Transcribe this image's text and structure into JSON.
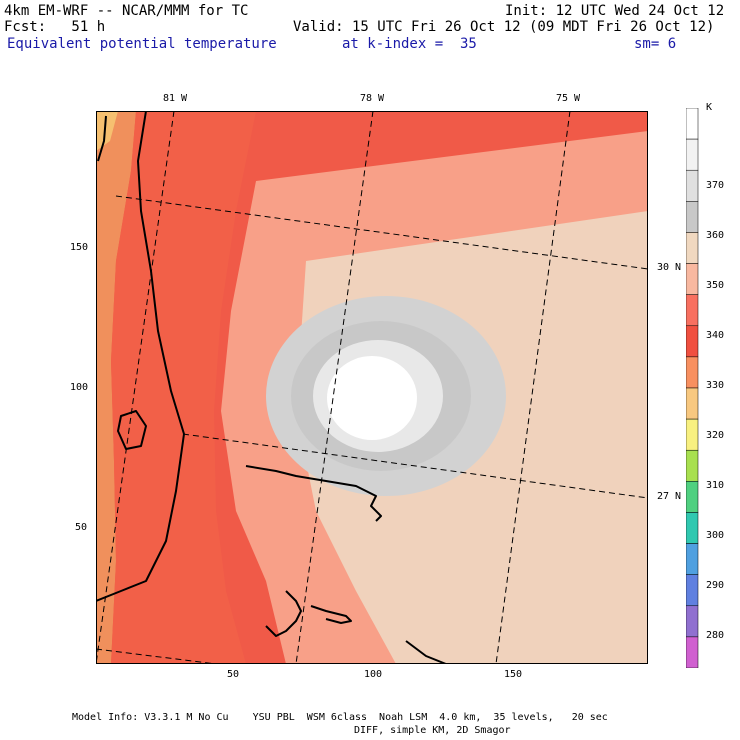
{
  "header": {
    "line1_left": "4km EM-WRF -- NCAR/MMM for TC",
    "line1_right": "Init: 12 UTC Wed 24 Oct 12",
    "line2_left": "Fcst:   51 h",
    "line2_right": "Valid: 15 UTC Fri 26 Oct 12 (09 MDT Fri 26 Oct 12)",
    "field": "Equivalent potential temperature",
    "level": "at k-index =  35",
    "smooth": "sm= 6"
  },
  "map": {
    "lon_labels": [
      "81 W",
      "78 W",
      "75 W"
    ],
    "lat_labels": [
      "30 N",
      "27 N"
    ],
    "x_ticks": [
      "50",
      "100",
      "150"
    ],
    "y_ticks": [
      "150",
      "100",
      "50"
    ]
  },
  "colorbar": {
    "unit": "K",
    "levels": [
      "370",
      "360",
      "350",
      "340",
      "330",
      "320",
      "310",
      "300",
      "290",
      "280"
    ],
    "colors": [
      "#ffffff",
      "#f2f2f2",
      "#e0e0e0",
      "#c8c8c8",
      "#f0d8c0",
      "#f8b8a0",
      "#f87060",
      "#f05040",
      "#f89060",
      "#f8c880",
      "#f8f080",
      "#a8e050",
      "#50d080",
      "#30c8b0",
      "#50a0e0",
      "#6080e0",
      "#9070d0",
      "#d060d0"
    ]
  },
  "footer": {
    "line1": "Model Info: V3.3.1 M No Cu    YSU PBL  WSM 6class  Noah LSM  4.0 km,  35 levels,   20 sec",
    "line2": "DIFF, simple KM, 2D Smagor"
  }
}
